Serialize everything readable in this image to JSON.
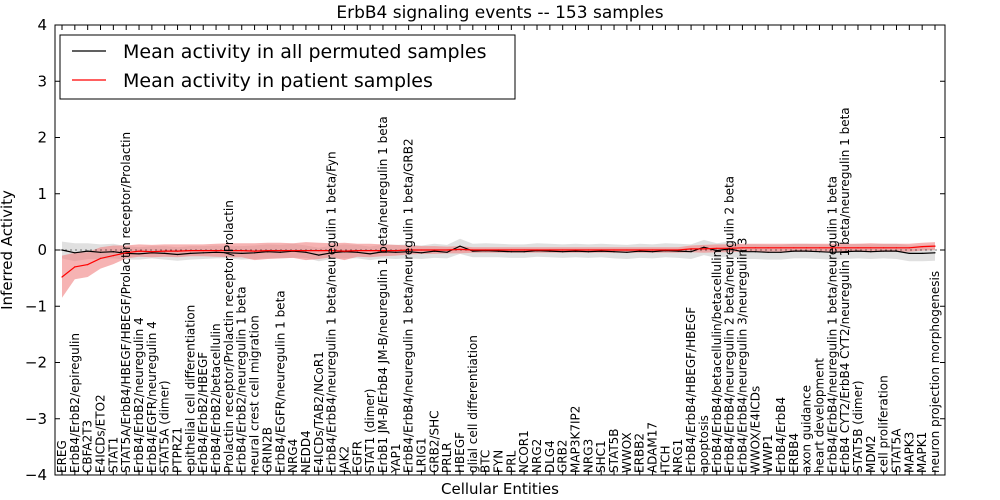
{
  "chart_data": {
    "type": "line",
    "title": "ErbB4 signaling events -- 153 samples",
    "xlabel": "Cellular Entities",
    "ylabel": "Inferred Activity",
    "ylim": [
      -4,
      4
    ],
    "yticks": [
      -4,
      -3,
      -2,
      -1,
      0,
      1,
      2,
      3,
      4
    ],
    "ytick_labels": [
      "−4",
      "−3",
      "−2",
      "−1",
      "0",
      "1",
      "2",
      "3",
      "4"
    ],
    "grid": false,
    "legend_position": "top-left",
    "categories": [
      "EREG",
      "ErbB4/ErbB2/epiregulin",
      "CBFA2T3",
      "E4ICDs/ETO2",
      "STAT1",
      "STAT5A/ErbB4/HBEGF/HBEGF/Prolactin receptor/Prolactin",
      "ErbB4/ErbB2/neuregulin 4",
      "ErbB4/EGFR/neuregulin 4",
      "STAT5A (dimer)",
      "PTPRZ1",
      "epithelial cell differentiation",
      "ErbB4/ErbB2/HBEGF",
      "ErbB4/ErbB2/betacellulin",
      "Prolactin receptor/Prolactin receptor/Prolactin",
      "ErbB4/ErbB2/neuregulin 1 beta",
      "neural crest cell migration",
      "GRIN2B",
      "ErbB4/EGFR/neuregulin 1 beta",
      "NRG4",
      "NEDD4",
      "E4ICDs/TAB2/NCoR1",
      "ErbB4/ErbB4/neuregulin 1 beta/neuregulin 1 beta/Fyn",
      "JAK2",
      "EGFR",
      "STAT1 (dimer)",
      "ErbB1 JM-B/ErbB4 JM-B/neuregulin 1 beta/neuregulin 1 beta",
      "YAP1",
      "ErbB4/ErbB4/neuregulin 1 beta/neuregulin 1 beta/GRB2",
      "LRIG1",
      "GRB2/SHC",
      "PRLR",
      "HBEGF",
      "glial cell differentiation",
      "BTC",
      "FYN",
      "PRL",
      "NCOR1",
      "NRG2",
      "DLG4",
      "GRB2",
      "MAP3K7IP2",
      "NRG3",
      "SHC1",
      "STAT5B",
      "WWOX",
      "ERBB2",
      "ADAM17",
      "ITCH",
      "NRG1",
      "ErbB4/ErbB4/HBEGF/HBEGF",
      "apoptosis",
      "ErbB4/ErbB4/betacellulin/betacellulin",
      "ErbB4/ErbB4/neuregulin 2 beta/neuregulin 2 beta",
      "ErbB4/ErbB4/neuregulin 3/neuregulin 3",
      "WWOX/E4ICDs",
      "WWP1",
      "ErbB4/ErbB4",
      "ERBB4",
      "axon guidance",
      "heart development",
      "ErbB4/ErbB4/neuregulin 1 beta/neuregulin 1 beta",
      "ErbB4 CYT2/ErbB4 CYT2/neuregulin 1 beta/neuregulin 1 beta",
      "STAT5B (dimer)",
      "MDM2",
      "cell proliferation",
      "STAT5A",
      "MAPK3",
      "MAPK1",
      "neuron projection morphogenesis"
    ],
    "series": [
      {
        "name": "Mean activity in all permuted samples",
        "color": "#000000",
        "band_color": "#bbbbbb",
        "values": [
          0.0,
          -0.05,
          -0.02,
          -0.04,
          -0.03,
          -0.06,
          -0.07,
          -0.05,
          -0.06,
          -0.08,
          -0.06,
          -0.05,
          -0.04,
          -0.05,
          -0.06,
          -0.05,
          -0.03,
          -0.04,
          -0.02,
          -0.04,
          -0.09,
          -0.05,
          -0.03,
          -0.04,
          -0.07,
          -0.03,
          -0.04,
          -0.03,
          -0.05,
          -0.02,
          -0.04,
          0.07,
          -0.02,
          -0.01,
          -0.02,
          -0.03,
          -0.03,
          -0.01,
          -0.02,
          -0.03,
          -0.02,
          -0.03,
          -0.02,
          -0.03,
          -0.04,
          -0.02,
          -0.03,
          -0.01,
          -0.02,
          -0.03,
          0.05,
          -0.01,
          0.02,
          -0.03,
          -0.03,
          -0.04,
          -0.04,
          -0.02,
          -0.02,
          -0.03,
          -0.04,
          -0.03,
          -0.02,
          -0.03,
          -0.02,
          -0.02,
          -0.06,
          -0.06,
          -0.05
        ],
        "lower": [
          -0.15,
          -0.2,
          -0.16,
          -0.16,
          -0.15,
          -0.17,
          -0.17,
          -0.15,
          -0.17,
          -0.19,
          -0.17,
          -0.16,
          -0.15,
          -0.15,
          -0.17,
          -0.16,
          -0.15,
          -0.15,
          -0.14,
          -0.14,
          -0.2,
          -0.16,
          -0.15,
          -0.15,
          -0.18,
          -0.15,
          -0.16,
          -0.15,
          -0.16,
          -0.14,
          -0.15,
          -0.07,
          -0.13,
          -0.13,
          -0.13,
          -0.14,
          -0.14,
          -0.12,
          -0.13,
          -0.14,
          -0.13,
          -0.14,
          -0.13,
          -0.15,
          -0.16,
          -0.14,
          -0.15,
          -0.13,
          -0.14,
          -0.16,
          -0.09,
          -0.14,
          -0.11,
          -0.16,
          -0.16,
          -0.17,
          -0.17,
          -0.15,
          -0.15,
          -0.16,
          -0.17,
          -0.16,
          -0.15,
          -0.16,
          -0.15,
          -0.16,
          -0.2,
          -0.2,
          -0.19
        ],
        "upper": [
          0.15,
          0.12,
          0.12,
          0.1,
          0.11,
          0.07,
          0.05,
          0.07,
          0.07,
          0.05,
          0.07,
          0.07,
          0.08,
          0.07,
          0.07,
          0.08,
          0.1,
          0.09,
          0.11,
          0.08,
          0.04,
          0.08,
          0.1,
          0.09,
          0.06,
          0.1,
          0.09,
          0.1,
          0.08,
          0.11,
          0.09,
          0.2,
          0.11,
          0.12,
          0.11,
          0.1,
          0.1,
          0.12,
          0.11,
          0.1,
          0.11,
          0.1,
          0.11,
          0.1,
          0.09,
          0.11,
          0.1,
          0.12,
          0.11,
          0.1,
          0.18,
          0.12,
          0.15,
          0.1,
          0.1,
          0.09,
          0.09,
          0.11,
          0.11,
          0.1,
          0.09,
          0.1,
          0.11,
          0.1,
          0.11,
          0.11,
          0.08,
          0.08,
          0.09
        ]
      },
      {
        "name": "Mean activity in patient samples",
        "color": "#ff0000",
        "band_color": "#f08080",
        "values": [
          -0.48,
          -0.3,
          -0.26,
          -0.15,
          -0.1,
          -0.05,
          -0.02,
          -0.03,
          -0.02,
          -0.02,
          -0.01,
          -0.01,
          -0.01,
          -0.01,
          -0.01,
          -0.02,
          -0.01,
          -0.01,
          -0.01,
          -0.01,
          -0.01,
          -0.01,
          -0.02,
          -0.01,
          -0.01,
          -0.01,
          -0.01,
          0.0,
          0.0,
          0.0,
          0.0,
          0.01,
          0.0,
          0.0,
          0.0,
          0.0,
          0.0,
          0.0,
          0.0,
          0.0,
          0.0,
          0.0,
          0.0,
          0.0,
          0.0,
          0.0,
          0.0,
          0.0,
          0.0,
          0.02,
          0.02,
          0.03,
          0.03,
          0.04,
          0.04,
          0.04,
          0.04,
          0.04,
          0.04,
          0.04,
          0.04,
          0.04,
          0.04,
          0.04,
          0.04,
          0.04,
          0.04,
          0.06,
          0.07
        ],
        "lower": [
          -0.85,
          -0.52,
          -0.48,
          -0.33,
          -0.25,
          -0.15,
          -0.12,
          -0.13,
          -0.12,
          -0.13,
          -0.11,
          -0.11,
          -0.12,
          -0.13,
          -0.13,
          -0.18,
          -0.16,
          -0.15,
          -0.14,
          -0.18,
          -0.16,
          -0.13,
          -0.18,
          -0.12,
          -0.13,
          -0.11,
          -0.1,
          -0.08,
          -0.07,
          -0.07,
          -0.06,
          -0.06,
          -0.05,
          -0.05,
          -0.05,
          -0.05,
          -0.05,
          -0.05,
          -0.05,
          -0.05,
          -0.05,
          -0.05,
          -0.05,
          -0.05,
          -0.05,
          -0.05,
          -0.05,
          -0.05,
          -0.05,
          -0.04,
          -0.05,
          -0.04,
          -0.04,
          -0.03,
          -0.03,
          -0.03,
          -0.03,
          -0.03,
          -0.03,
          -0.03,
          -0.03,
          -0.03,
          -0.03,
          -0.04,
          -0.03,
          -0.03,
          -0.03,
          -0.01,
          0.0
        ],
        "upper": [
          -0.1,
          -0.05,
          -0.04,
          0.05,
          0.08,
          0.08,
          0.1,
          0.09,
          0.1,
          0.1,
          0.1,
          0.1,
          0.11,
          0.12,
          0.12,
          0.12,
          0.13,
          0.13,
          0.12,
          0.14,
          0.13,
          0.12,
          0.13,
          0.11,
          0.11,
          0.1,
          0.09,
          0.08,
          0.07,
          0.07,
          0.06,
          0.07,
          0.05,
          0.05,
          0.05,
          0.05,
          0.05,
          0.05,
          0.05,
          0.05,
          0.05,
          0.05,
          0.05,
          0.05,
          0.05,
          0.05,
          0.05,
          0.05,
          0.05,
          0.08,
          0.09,
          0.1,
          0.1,
          0.11,
          0.11,
          0.11,
          0.11,
          0.11,
          0.11,
          0.11,
          0.11,
          0.11,
          0.11,
          0.12,
          0.11,
          0.11,
          0.11,
          0.13,
          0.14
        ]
      }
    ]
  }
}
